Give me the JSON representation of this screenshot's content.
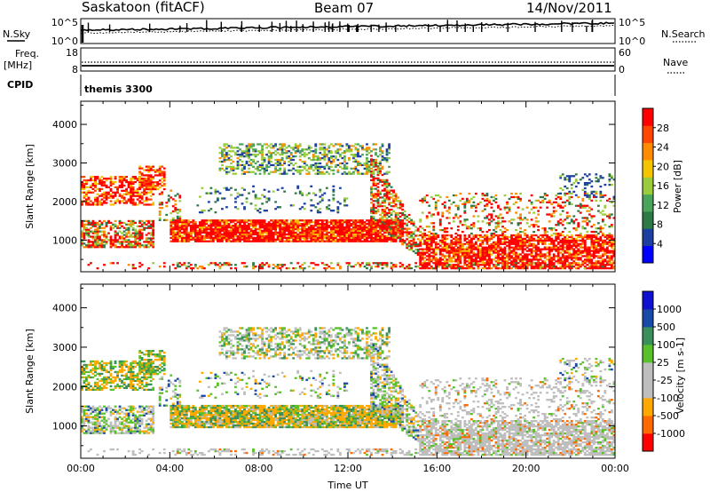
{
  "header": {
    "station": "Saskatoon (fitACF)",
    "beam": "Beam 07",
    "date": "14/Nov/2011"
  },
  "noise_panel": {
    "left_label": "N.Sky",
    "left_ticks": [
      "10^5",
      "10^0"
    ],
    "right_label": "N.Search",
    "right_ticks": [
      "10^5",
      "10^0"
    ]
  },
  "freq_panel": {
    "left_label_1": "Freq.",
    "left_label_2": "[MHz]",
    "left_ticks": [
      "18",
      "8"
    ],
    "right_label": "Nave",
    "right_ticks": [
      "60",
      "0"
    ]
  },
  "cpid_panel": {
    "label": "CPID",
    "value": "themis 3300"
  },
  "colors": {
    "power_scale": [
      "#0000ff",
      "#1d3fa0",
      "#2e7a46",
      "#4aa55b",
      "#9acc3c",
      "#f5c400",
      "#ff8c00",
      "#ff4500",
      "#ff0000"
    ],
    "velocity_scale": [
      "#ff0000",
      "#ff6a00",
      "#ffa800",
      "#bebebe",
      "#bebebe",
      "#5ac02a",
      "#3a8f5a",
      "#1a4aa8",
      "#1010d0"
    ]
  },
  "chart_data": [
    {
      "type": "heatmap",
      "name": "power",
      "ylabel": "Slant Range [km]",
      "xlabel": "",
      "x_range_hours": [
        0,
        24
      ],
      "ylim": [
        180,
        4600
      ],
      "y_ticks": [
        1000,
        2000,
        3000,
        4000
      ],
      "x_tick_labels": [
        "00:00",
        "04:00",
        "08:00",
        "12:00",
        "16:00",
        "20:00",
        "00:00"
      ],
      "colorbar": {
        "label": "Power [dB]",
        "range": [
          0,
          32
        ],
        "ticks": [
          4,
          8,
          12,
          16,
          20,
          24,
          28
        ]
      }
    },
    {
      "type": "heatmap",
      "name": "velocity",
      "ylabel": "Slant Range [km]",
      "xlabel": "Time UT",
      "x_range_hours": [
        0,
        24
      ],
      "ylim": [
        180,
        4600
      ],
      "y_ticks": [
        1000,
        2000,
        3000,
        4000
      ],
      "x_tick_labels": [
        "00:00",
        "04:00",
        "08:00",
        "12:00",
        "16:00",
        "20:00",
        "00:00"
      ],
      "colorbar": {
        "label": "Velocity [m s-1]",
        "ticks": [
          "1000",
          "500",
          "100",
          "25",
          "-25",
          "-100",
          "-500",
          "-1000"
        ]
      }
    }
  ]
}
